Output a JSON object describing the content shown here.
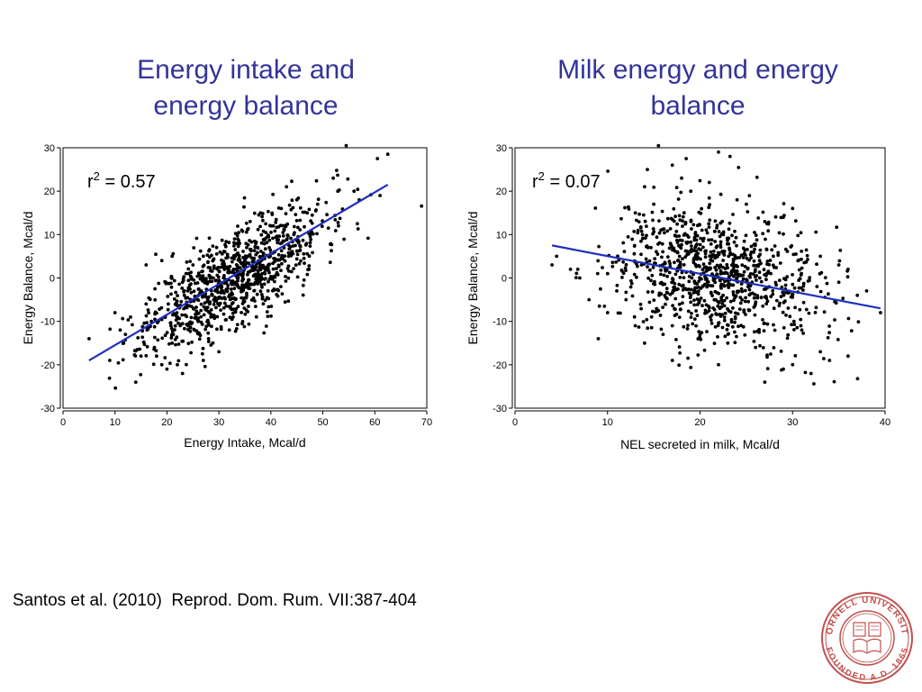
{
  "slide": {
    "title_left_lines": [
      "Energy intake and",
      "energy balance"
    ],
    "title_right_lines": [
      "Milk energy and energy",
      "balance"
    ],
    "citation": "Santos et al. (2010)  Reprod. Dom. Rum. VII:387-404",
    "logo": {
      "top_text": "CORNELL UNIVERSITY",
      "bottom_text": "FOUNDED A.D. 1865",
      "color": "#c0504d"
    }
  },
  "chart_data": [
    {
      "type": "scatter",
      "title": "",
      "xlabel": "Energy Intake, Mcal/d",
      "ylabel": "Energy Balance, Mcal/d",
      "xlim": [
        0,
        70
      ],
      "ylim": [
        -30,
        30
      ],
      "xticks": [
        0,
        10,
        20,
        30,
        40,
        50,
        60,
        70
      ],
      "yticks": [
        -30,
        -20,
        -10,
        0,
        10,
        20,
        30
      ],
      "annotation": {
        "base": "r",
        "sup": "2",
        "rest": " = 0.57"
      },
      "fit_line": {
        "x": [
          5,
          62.5
        ],
        "y": [
          -19,
          21.5
        ],
        "color": "#1f2fbf"
      },
      "point_color": "#000000",
      "n_points": 1000,
      "points": [
        [
          54.5,
          30.5
        ],
        [
          62.5,
          28.5
        ],
        [
          60.5,
          27.5
        ],
        [
          52,
          23
        ],
        [
          57,
          18
        ],
        [
          61,
          19
        ],
        [
          43,
          21
        ],
        [
          5,
          -14
        ],
        [
          14,
          -24
        ],
        [
          9,
          -19
        ],
        [
          10,
          -8
        ],
        [
          12,
          -13
        ],
        [
          20,
          -21
        ],
        [
          23,
          -22
        ],
        [
          15,
          -18
        ],
        [
          18,
          -18
        ],
        [
          19,
          -20
        ],
        [
          22,
          -20
        ],
        [
          27,
          -19
        ],
        [
          30,
          -17
        ],
        [
          47,
          15
        ],
        [
          49,
          17
        ],
        [
          53,
          12
        ],
        [
          56,
          20
        ],
        [
          44,
          6
        ],
        [
          45,
          18
        ],
        [
          42,
          16
        ],
        [
          38,
          15
        ],
        [
          36,
          13
        ],
        [
          40,
          12
        ],
        [
          33,
          9
        ],
        [
          27,
          5
        ],
        [
          25,
          3
        ],
        [
          24,
          -3
        ],
        [
          29,
          -5
        ],
        [
          31,
          0
        ],
        [
          35,
          4
        ],
        [
          37,
          2
        ],
        [
          32,
          -12
        ],
        [
          28,
          -14
        ],
        [
          26,
          -10
        ],
        [
          21,
          -15
        ],
        [
          17,
          -10
        ],
        [
          16,
          -6
        ],
        [
          13,
          -9
        ],
        [
          11,
          -12
        ],
        [
          19,
          4
        ],
        [
          21,
          5
        ],
        [
          16,
          3
        ],
        [
          23,
          -1
        ]
      ],
      "cluster": {
        "mean_x": 33,
        "sd_x": 8.5,
        "slope": 0.7,
        "intercept": -23,
        "resid_sd": 5.5,
        "count": 950,
        "seed": 11
      }
    },
    {
      "type": "scatter",
      "title": "",
      "xlabel": "NEL secreted in milk, Mcal/d",
      "ylabel": "Energy Balance, Mcal/d",
      "xlim": [
        0,
        40
      ],
      "ylim": [
        -30,
        30
      ],
      "xticks": [
        0,
        10,
        20,
        30,
        40
      ],
      "yticks": [
        -30,
        -20,
        -10,
        0,
        10,
        20,
        30
      ],
      "annotation": {
        "base": "r",
        "sup": "2",
        "rest": " = 0.07"
      },
      "fit_line": {
        "x": [
          4,
          39.5
        ],
        "y": [
          7.5,
          -7
        ]
      },
      "point_color": "#000000",
      "n_points": 1000,
      "points": [
        [
          15.5,
          30.5
        ],
        [
          22,
          29
        ],
        [
          18.5,
          27.5
        ],
        [
          4,
          3
        ],
        [
          4.5,
          5
        ],
        [
          6,
          2
        ],
        [
          7,
          0
        ],
        [
          8,
          -5
        ],
        [
          10,
          -8
        ],
        [
          9,
          -14
        ],
        [
          13,
          -11
        ],
        [
          14,
          -15
        ],
        [
          16,
          -13
        ],
        [
          17,
          -19
        ],
        [
          22,
          -20
        ],
        [
          27,
          -24
        ],
        [
          29,
          -21
        ],
        [
          32,
          -22
        ],
        [
          34,
          -19
        ],
        [
          36,
          -18
        ],
        [
          33,
          -17
        ],
        [
          30,
          -20
        ],
        [
          39.5,
          -8
        ],
        [
          38,
          -3
        ],
        [
          37,
          -4
        ],
        [
          35,
          -1
        ],
        [
          33,
          5
        ],
        [
          35,
          3
        ],
        [
          36,
          2
        ],
        [
          30,
          16
        ],
        [
          29,
          14
        ],
        [
          24,
          18
        ],
        [
          21,
          22
        ],
        [
          18,
          23
        ],
        [
          17,
          26
        ],
        [
          14,
          21
        ],
        [
          15,
          17
        ],
        [
          13,
          15
        ],
        [
          19,
          20
        ],
        [
          25,
          17
        ],
        [
          27,
          13
        ],
        [
          28,
          -7
        ],
        [
          31,
          -12
        ],
        [
          26,
          -16
        ],
        [
          23,
          -15
        ],
        [
          20,
          -13
        ],
        [
          17,
          -11
        ],
        [
          12,
          -5
        ],
        [
          11,
          -3
        ],
        [
          10,
          1
        ]
      ],
      "cluster": {
        "mean_x": 21.5,
        "sd_x": 5.5,
        "slope": -0.4,
        "intercept": 9.5,
        "resid_sd": 7.5,
        "count": 950,
        "seed": 29
      }
    }
  ]
}
